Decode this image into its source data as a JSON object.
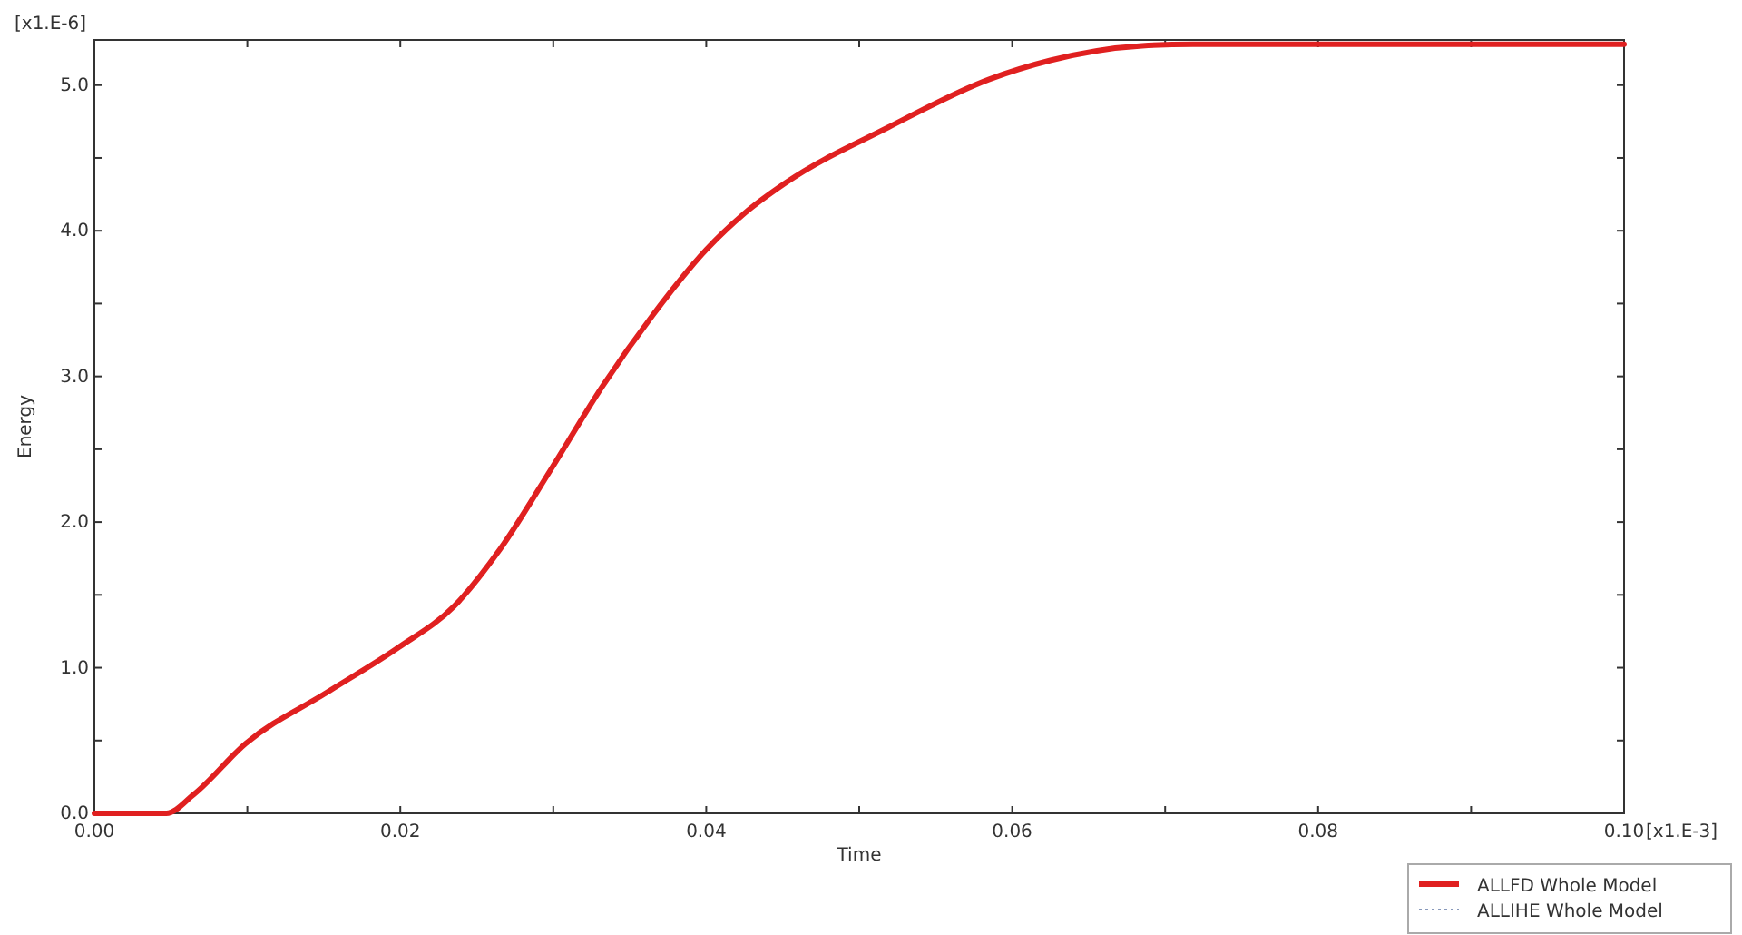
{
  "chart_data": {
    "type": "line",
    "xlabel": "Time",
    "ylabel": "Energy",
    "annotations": [
      "[x1.E-6]",
      "[x1.E-3]"
    ],
    "x": [
      0,
      0.0039,
      0.0047,
      0.0065,
      0.0099,
      0.0152,
      0.0199,
      0.0235,
      0.0265,
      0.0299,
      0.0332,
      0.0365,
      0.04,
      0.0425,
      0.0452,
      0.0519,
      0.0585,
      0.0625,
      0.0685,
      0.0718,
      0.08,
      0.09,
      0.1
    ],
    "series": [
      {
        "name": "ALLFD Whole Model",
        "color": "#e02020",
        "line_style": "solid",
        "values": [
          0,
          0,
          0,
          0.13,
          0.48,
          0.83,
          1.14,
          1.42,
          1.81,
          2.37,
          2.93,
          3.42,
          3.87,
          4.12,
          4.33,
          4.71,
          5.04,
          5.17,
          5.27,
          5.28,
          5.28,
          5.28,
          5.28
        ]
      },
      {
        "name": "ALLIHE Whole Model",
        "color": "#8899bb",
        "line_style": "dotted",
        "values": [
          null,
          null,
          null,
          null,
          null,
          null,
          null,
          null,
          null,
          null,
          null,
          null,
          null,
          null,
          null,
          null,
          null,
          null,
          null,
          null,
          null,
          null,
          null
        ]
      }
    ],
    "xlim": [
      0,
      0.1
    ],
    "ylim": [
      0,
      5.31
    ],
    "xticks": [
      {
        "value": 0,
        "label": "0.00"
      },
      {
        "value": 0.01,
        "label": null
      },
      {
        "value": 0.02,
        "label": "0.02"
      },
      {
        "value": 0.03,
        "label": null
      },
      {
        "value": 0.04,
        "label": "0.04"
      },
      {
        "value": 0.05,
        "label": null
      },
      {
        "value": 0.06,
        "label": "0.06"
      },
      {
        "value": 0.07,
        "label": null
      },
      {
        "value": 0.08,
        "label": "0.08"
      },
      {
        "value": 0.09,
        "label": null
      },
      {
        "value": 0.1,
        "label": "0.10"
      }
    ],
    "yticks": [
      {
        "value": 0,
        "label": "0.0"
      },
      {
        "value": 0.5,
        "label": null
      },
      {
        "value": 1,
        "label": "1.0"
      },
      {
        "value": 1.5,
        "label": null
      },
      {
        "value": 2,
        "label": "2.0"
      },
      {
        "value": 2.5,
        "label": null
      },
      {
        "value": 3,
        "label": "3.0"
      },
      {
        "value": 3.5,
        "label": null
      },
      {
        "value": 4,
        "label": "4.0"
      },
      {
        "value": 4.5,
        "label": null
      },
      {
        "value": 5,
        "label": "5.0"
      }
    ],
    "grid": false,
    "legend": "bottom right"
  }
}
